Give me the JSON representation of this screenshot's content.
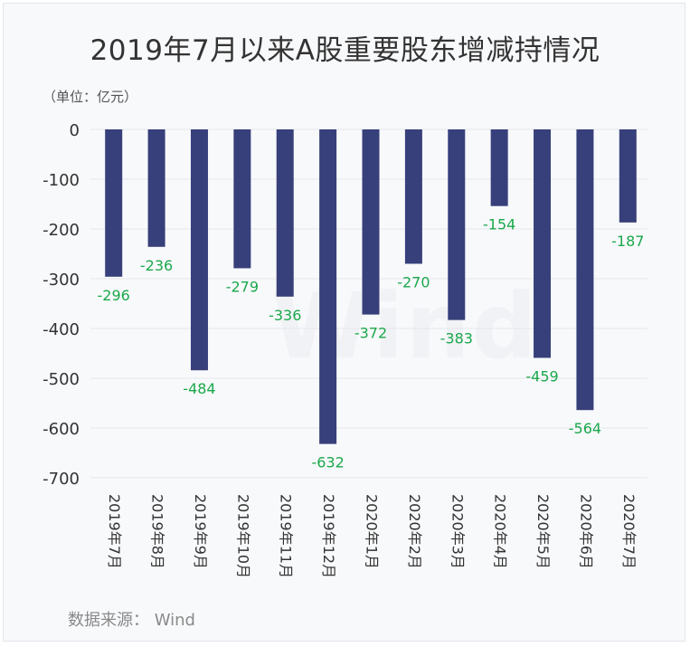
{
  "title": "2019年7月以来A股重要股东增减持情况",
  "unit_label": "（单位：亿元）",
  "source": "数据来源：  Wind",
  "watermark": "Wind",
  "colors": {
    "bar": "#37407a",
    "label": "#1aa84b",
    "grid": "#e6e6ec",
    "axis_text": "#333333"
  },
  "chart_data": {
    "type": "bar",
    "title": "2019年7月以来A股重要股东增减持情况",
    "ylabel": "（单位：亿元）",
    "xlabel": "",
    "ylim": [
      -700,
      0
    ],
    "yticks": [
      0,
      -100,
      -200,
      -300,
      -400,
      -500,
      -600,
      -700
    ],
    "grid": true,
    "categories": [
      "2019年7月",
      "2019年8月",
      "2019年9月",
      "2019年10月",
      "2019年11月",
      "2019年12月",
      "2020年1月",
      "2020年2月",
      "2020年3月",
      "2020年4月",
      "2020年5月",
      "2020年6月",
      "2020年7月"
    ],
    "values": [
      -296,
      -236,
      -484,
      -279,
      -336,
      -632,
      -372,
      -270,
      -383,
      -154,
      -459,
      -564,
      -187
    ],
    "data_labels": [
      "-296",
      "-236",
      "-484",
      "-279",
      "-336",
      "-632",
      "-372",
      "-270",
      "-383",
      "-154",
      "-459",
      "-564",
      "-187"
    ]
  }
}
